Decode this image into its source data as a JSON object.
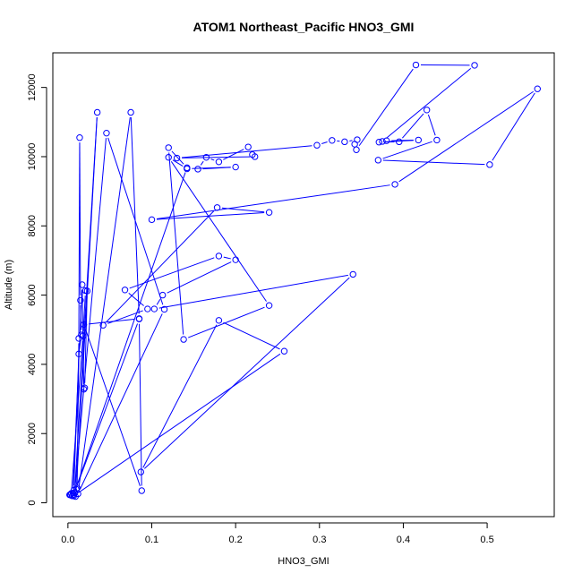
{
  "chart_data": {
    "type": "line",
    "title": "ATOM1 Northeast_Pacific HNO3_GMI",
    "xlabel": "HNO3_GMI",
    "ylabel": "Altitude (m)",
    "xlim": [
      -0.018,
      0.58
    ],
    "ylim": [
      -400,
      13000
    ],
    "xticks": [
      0.0,
      0.1,
      0.2,
      0.3,
      0.4,
      0.5
    ],
    "xtick_labels": [
      "0.0",
      "0.1",
      "0.2",
      "0.3",
      "0.4",
      "0.5"
    ],
    "yticks": [
      0,
      2000,
      4000,
      6000,
      8000,
      10000,
      12000
    ],
    "ytick_labels": [
      "0",
      "2000",
      "4000",
      "6000",
      "8000",
      "10000",
      "12000"
    ],
    "grid": false,
    "series": [
      {
        "color": "#0000ff",
        "marker": "open-circle",
        "x": [
          0.002,
          0.005,
          0.009,
          0.011,
          0.013,
          0.014,
          0.015,
          0.016,
          0.013,
          0.007,
          0.006,
          0.017,
          0.019,
          0.02,
          0.023,
          0.021,
          0.018,
          0.004,
          0.003,
          0.01,
          0.035,
          0.008,
          0.046,
          0.115,
          0.012,
          0.075,
          0.085,
          0.019,
          0.088,
          0.085,
          0.007,
          0.142,
          0.12,
          0.138,
          0.24,
          0.12,
          0.142,
          0.2,
          0.155,
          0.165,
          0.18,
          0.215,
          0.22,
          0.223,
          0.13,
          0.297,
          0.315,
          0.33,
          0.345,
          0.342,
          0.344,
          0.415,
          0.485,
          0.375,
          0.38,
          0.418,
          0.371,
          0.395,
          0.428,
          0.44,
          0.37,
          0.503,
          0.56,
          0.39,
          0.1,
          0.24,
          0.178,
          0.042,
          0.095,
          0.068,
          0.18,
          0.2,
          0.113,
          0.103,
          0.34,
          0.087,
          0.18,
          0.258,
          0.007
        ],
        "y": [
          230,
          200,
          180,
          430,
          4750,
          10550,
          5850,
          4850,
          4300,
          360,
          280,
          6300,
          3280,
          3320,
          6120,
          6130,
          4820,
          270,
          230,
          390,
          11280,
          290,
          10680,
          5590,
          260,
          11280,
          5320,
          5150,
          350,
          5310,
          240,
          9680,
          10260,
          4720,
          5700,
          9980,
          9650,
          9700,
          9640,
          9980,
          9850,
          10280,
          10060,
          10000,
          9960,
          10330,
          10470,
          10430,
          10490,
          10360,
          10200,
          12650,
          12640,
          10440,
          10460,
          10480,
          10420,
          10430,
          11350,
          10480,
          9900,
          9770,
          11960,
          9200,
          8180,
          8390,
          8530,
          5130,
          5600,
          6150,
          7130,
          7020,
          6000,
          5600,
          6600,
          890,
          5270,
          4380,
          200
        ]
      }
    ]
  }
}
